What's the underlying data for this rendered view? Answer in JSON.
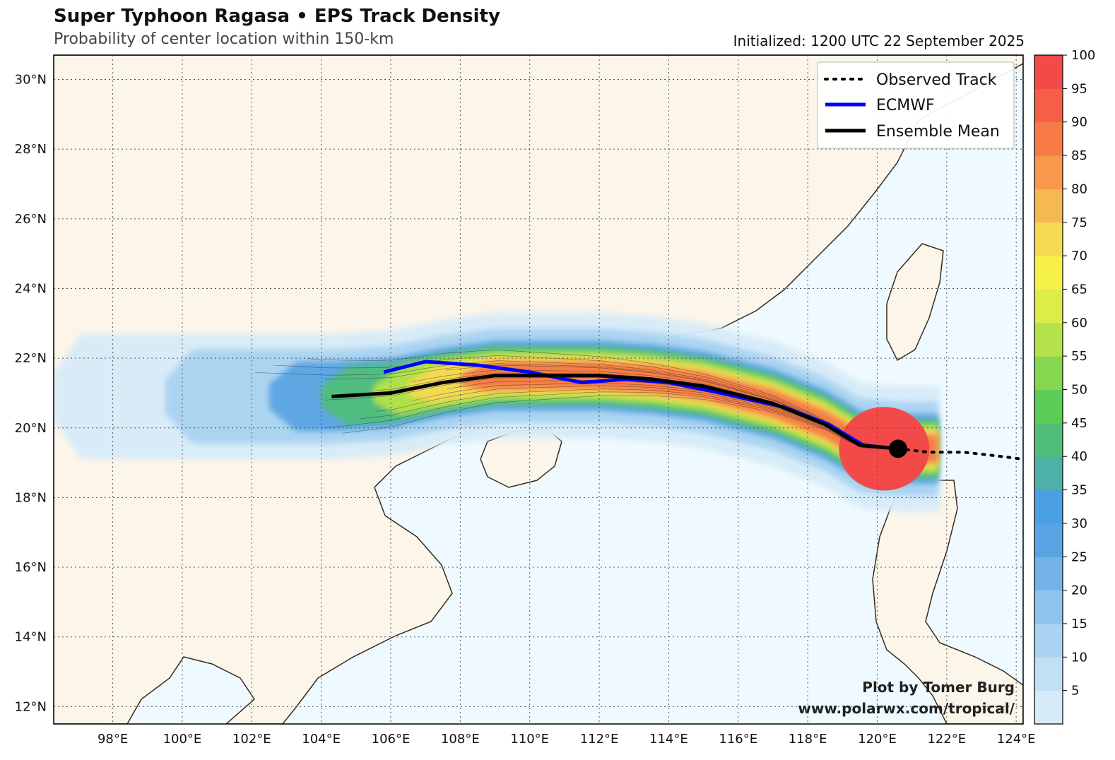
{
  "header": {
    "title": "Super Typhoon Ragasa • EPS Track Density",
    "subtitle": "Probability of center location within 150-km",
    "initialized": "Initialized: 1200 UTC 22 September 2025"
  },
  "map": {
    "lon_range": [
      96.3,
      124.2
    ],
    "lat_range": [
      11.5,
      30.7
    ],
    "lon_ticks": [
      98,
      100,
      102,
      104,
      106,
      108,
      110,
      112,
      114,
      116,
      118,
      120,
      122,
      124
    ],
    "lat_ticks": [
      12,
      14,
      16,
      18,
      20,
      22,
      24,
      26,
      28,
      30
    ],
    "lon_labels": [
      "98°E",
      "100°E",
      "102°E",
      "104°E",
      "106°E",
      "108°E",
      "110°E",
      "112°E",
      "114°E",
      "116°E",
      "118°E",
      "120°E",
      "122°E",
      "124°E"
    ],
    "lat_labels": [
      "12°N",
      "14°N",
      "16°N",
      "18°N",
      "20°N",
      "22°N",
      "24°N",
      "26°N",
      "28°N",
      "30°N"
    ],
    "colors": {
      "land": "#fbf5ea",
      "ocean": "#eefaff",
      "coast": "#3a2a1e",
      "grid": "#555555"
    }
  },
  "chart_data": {
    "type": "track-density-map",
    "observed_track": [
      [
        120.6,
        19.4
      ],
      [
        121.5,
        19.3
      ],
      [
        122.5,
        19.3
      ],
      [
        123.4,
        19.2
      ],
      [
        124.2,
        19.1
      ]
    ],
    "current_position": [
      120.6,
      19.4
    ],
    "ecmwf_track": [
      [
        105.8,
        21.6
      ],
      [
        107.0,
        21.9
      ],
      [
        108.5,
        21.8
      ],
      [
        110.0,
        21.6
      ],
      [
        111.5,
        21.3
      ],
      [
        112.8,
        21.4
      ],
      [
        114.0,
        21.3
      ],
      [
        115.5,
        21.0
      ],
      [
        117.3,
        20.6
      ],
      [
        118.6,
        20.1
      ],
      [
        119.6,
        19.5
      ],
      [
        120.6,
        19.4
      ]
    ],
    "ensemble_mean_track": [
      [
        104.3,
        20.9
      ],
      [
        106.0,
        21.0
      ],
      [
        107.5,
        21.3
      ],
      [
        109.0,
        21.5
      ],
      [
        110.5,
        21.5
      ],
      [
        112.0,
        21.5
      ],
      [
        113.5,
        21.4
      ],
      [
        115.0,
        21.2
      ],
      [
        117.0,
        20.7
      ],
      [
        118.5,
        20.1
      ],
      [
        119.5,
        19.5
      ],
      [
        120.6,
        19.4
      ]
    ],
    "density_levels": [
      {
        "prob": 5,
        "lat_half": 1.8,
        "lon_start": 96.3
      },
      {
        "prob": 15,
        "lat_half": 1.35,
        "lon_start": 99.5
      },
      {
        "prob": 30,
        "lat_half": 1.0,
        "lon_start": 102.5
      },
      {
        "prob": 45,
        "lat_half": 0.85,
        "lon_start": 104.0
      },
      {
        "prob": 60,
        "lat_half": 0.7,
        "lon_start": 105.5
      },
      {
        "prob": 75,
        "lat_half": 0.55,
        "lon_start": 106.5
      },
      {
        "prob": 90,
        "lat_half": 0.4,
        "lon_start": 108.0
      }
    ],
    "colorbar": {
      "ticks": [
        5,
        10,
        15,
        20,
        25,
        30,
        35,
        40,
        45,
        50,
        55,
        60,
        65,
        70,
        75,
        80,
        85,
        90,
        95,
        100
      ],
      "colors": [
        "#d6ebf8",
        "#c2e0f4",
        "#a9d3f1",
        "#8fc4ec",
        "#73b3e8",
        "#5ba4e3",
        "#4aa0e0",
        "#4db1a8",
        "#50be7a",
        "#5bcc55",
        "#86d64f",
        "#b5e24a",
        "#dcec49",
        "#f5f04a",
        "#f7d952",
        "#f6b94f",
        "#f7984a",
        "#f77a47",
        "#f55f45",
        "#f24a48"
      ]
    },
    "legend": [
      {
        "label": "Observed Track",
        "style": "dotted",
        "color": "#000000"
      },
      {
        "label": "ECMWF",
        "style": "solid",
        "color": "#0000ff"
      },
      {
        "label": "Ensemble Mean",
        "style": "solid",
        "color": "#000000"
      }
    ]
  },
  "credit": {
    "line1": "Plot by Tomer Burg",
    "line2": "www.polarwx.com/tropical/"
  }
}
